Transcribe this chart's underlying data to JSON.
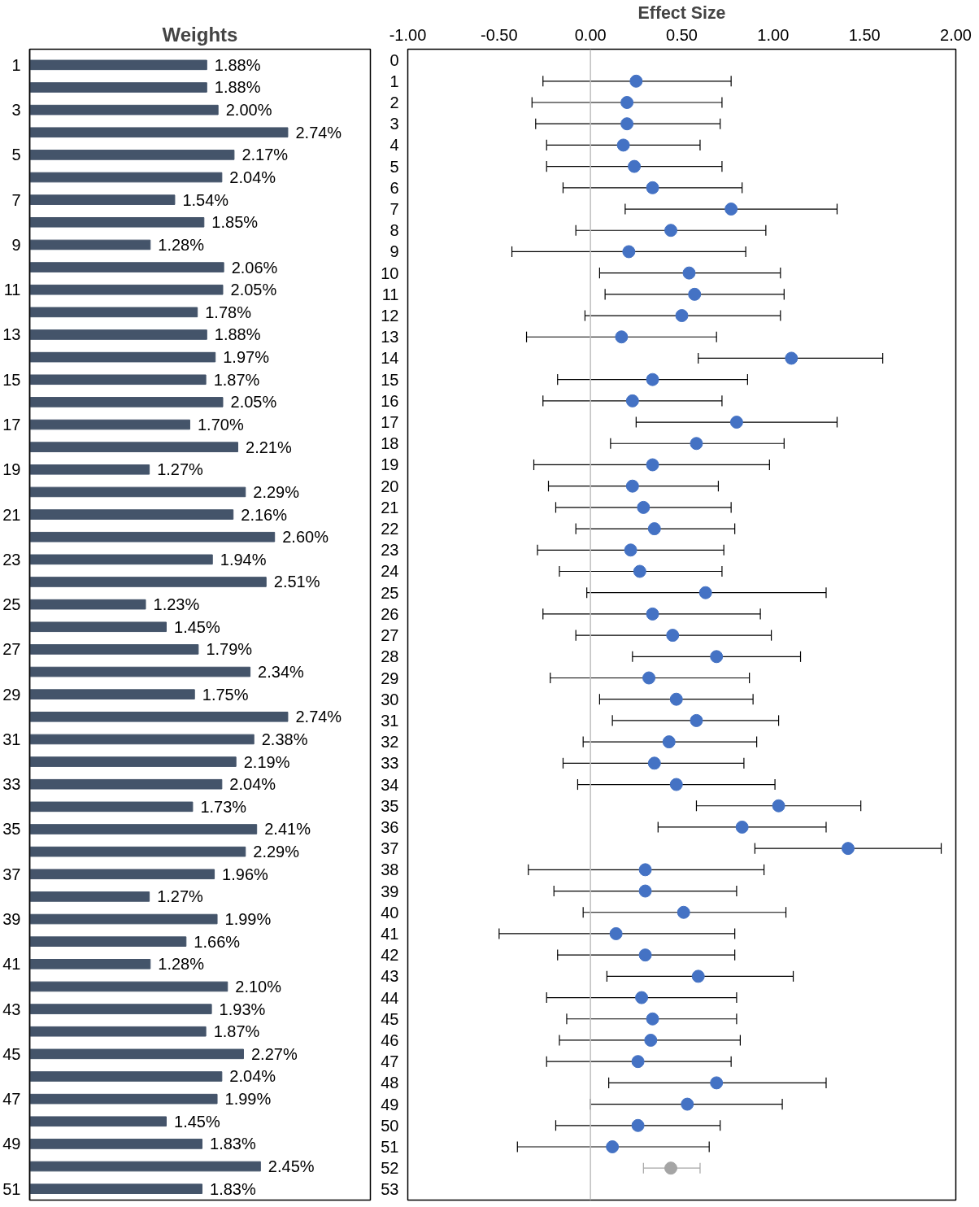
{
  "chart_data": [
    {
      "type": "bar",
      "orientation": "horizontal",
      "title": "Weights",
      "color": "#44546a",
      "categories": [
        "1",
        null,
        "3",
        null,
        "5",
        null,
        "7",
        null,
        "9",
        null,
        "11",
        null,
        "13",
        null,
        "15",
        null,
        "17",
        null,
        "19",
        null,
        "21",
        null,
        "23",
        null,
        "25",
        null,
        "27",
        null,
        "29",
        null,
        "31",
        null,
        "33",
        null,
        "35",
        null,
        "37",
        null,
        "39",
        null,
        "41",
        null,
        "43",
        null,
        "45",
        null,
        "47",
        null,
        "49",
        null,
        "51"
      ],
      "values": [
        1.88,
        1.88,
        2.0,
        2.74,
        2.17,
        2.04,
        1.54,
        1.85,
        1.28,
        2.06,
        2.05,
        1.78,
        1.88,
        1.97,
        1.87,
        2.05,
        1.7,
        2.21,
        1.27,
        2.29,
        2.16,
        2.6,
        1.94,
        2.51,
        1.23,
        1.45,
        1.79,
        2.34,
        1.75,
        2.74,
        2.38,
        2.19,
        2.04,
        1.73,
        2.41,
        2.29,
        1.96,
        1.27,
        1.99,
        1.66,
        1.28,
        2.1,
        1.93,
        1.87,
        2.27,
        2.04,
        1.99,
        1.45,
        1.83,
        2.45,
        1.83
      ],
      "value_labels": [
        "1.88%",
        "1.88%",
        "2.00%",
        "2.74%",
        "2.17%",
        "2.04%",
        "1.54%",
        "1.85%",
        "1.28%",
        "2.06%",
        "2.05%",
        "1.78%",
        "1.88%",
        "1.97%",
        "1.87%",
        "2.05%",
        "1.70%",
        "2.21%",
        "1.27%",
        "2.29%",
        "2.16%",
        "2.60%",
        "1.94%",
        "2.51%",
        "1.23%",
        "1.45%",
        "1.79%",
        "2.34%",
        "1.75%",
        "2.74%",
        "2.38%",
        "2.19%",
        "2.04%",
        "1.73%",
        "2.41%",
        "2.29%",
        "1.96%",
        "1.27%",
        "1.99%",
        "1.66%",
        "1.28%",
        "2.10%",
        "1.93%",
        "1.87%",
        "2.27%",
        "2.04%",
        "1.99%",
        "1.45%",
        "1.83%",
        "2.45%",
        "1.83%"
      ]
    },
    {
      "type": "scatter",
      "orientation": "horizontal",
      "xlabel": "Effect Size",
      "marker": "circle",
      "categories": [
        "0",
        "1",
        "2",
        "3",
        "4",
        "5",
        "6",
        "7",
        "8",
        "9",
        "10",
        "11",
        "12",
        "13",
        "14",
        "15",
        "16",
        "17",
        "18",
        "19",
        "20",
        "21",
        "22",
        "23",
        "24",
        "25",
        "26",
        "27",
        "28",
        "29",
        "30",
        "31",
        "32",
        "33",
        "34",
        "35",
        "36",
        "37",
        "38",
        "39",
        "40",
        "41",
        "42",
        "43",
        "44",
        "45",
        "46",
        "47",
        "48",
        "49",
        "50",
        "51",
        "52",
        "53"
      ],
      "xlim": [
        -1,
        2
      ],
      "xticks": [
        {
          "value": -1,
          "label": "-1.00"
        },
        {
          "value": -0.5,
          "label": "-0.50"
        },
        {
          "value": 0,
          "label": "0.00"
        },
        {
          "value": 0.5,
          "label": "0.50"
        },
        {
          "value": 1,
          "label": "1.00"
        },
        {
          "value": 1.5,
          "label": "1.50"
        },
        {
          "value": 2,
          "label": "2.00"
        }
      ],
      "ref_lines": [
        {
          "axis": "x",
          "value": 0,
          "color": "#bfbfbf"
        }
      ],
      "series": [
        {
          "color": "#4472c4",
          "values": [
            null,
            0.25,
            0.2,
            0.2,
            0.18,
            0.24,
            0.34,
            0.77,
            0.44,
            0.21,
            0.54,
            0.57,
            0.5,
            0.17,
            1.1,
            0.34,
            0.23,
            0.8,
            0.58,
            0.34,
            0.23,
            0.29,
            0.35,
            0.22,
            0.27,
            0.63,
            0.34,
            0.45,
            0.69,
            0.32,
            0.47,
            0.58,
            0.43,
            0.35,
            0.47,
            1.03,
            0.83,
            1.41,
            0.3,
            0.3,
            0.51,
            0.14,
            0.3,
            0.59,
            0.28,
            0.34,
            0.33,
            0.26,
            0.69,
            0.53,
            0.26,
            0.12,
            null,
            null
          ],
          "errors": [
            null,
            [
              -0.26,
              0.77
            ],
            [
              -0.32,
              0.72
            ],
            [
              -0.3,
              0.71
            ],
            [
              -0.24,
              0.6
            ],
            [
              -0.24,
              0.72
            ],
            [
              -0.15,
              0.83
            ],
            [
              0.19,
              1.35
            ],
            [
              -0.08,
              0.96
            ],
            [
              -0.43,
              0.85
            ],
            [
              0.05,
              1.04
            ],
            [
              0.08,
              1.06
            ],
            [
              -0.03,
              1.04
            ],
            [
              -0.35,
              0.69
            ],
            [
              0.59,
              1.6
            ],
            [
              -0.18,
              0.86
            ],
            [
              -0.26,
              0.72
            ],
            [
              0.25,
              1.35
            ],
            [
              0.11,
              1.06
            ],
            [
              -0.31,
              0.98
            ],
            [
              -0.23,
              0.7
            ],
            [
              -0.19,
              0.77
            ],
            [
              -0.08,
              0.79
            ],
            [
              -0.29,
              0.73
            ],
            [
              -0.17,
              0.72
            ],
            [
              -0.02,
              1.29
            ],
            [
              -0.26,
              0.93
            ],
            [
              -0.08,
              0.99
            ],
            [
              0.23,
              1.15
            ],
            [
              -0.22,
              0.87
            ],
            [
              0.05,
              0.89
            ],
            [
              0.12,
              1.03
            ],
            [
              -0.04,
              0.91
            ],
            [
              -0.15,
              0.84
            ],
            [
              -0.07,
              1.01
            ],
            [
              0.58,
              1.48
            ],
            [
              0.37,
              1.29
            ],
            [
              0.9,
              1.92
            ],
            [
              -0.34,
              0.95
            ],
            [
              -0.2,
              0.8
            ],
            [
              -0.04,
              1.07
            ],
            [
              -0.5,
              0.79
            ],
            [
              -0.18,
              0.79
            ],
            [
              0.09,
              1.11
            ],
            [
              -0.24,
              0.8
            ],
            [
              -0.13,
              0.8
            ],
            [
              -0.17,
              0.82
            ],
            [
              -0.24,
              0.77
            ],
            [
              0.1,
              1.29
            ],
            [
              0.0,
              1.05
            ],
            [
              -0.19,
              0.71
            ],
            [
              -0.4,
              0.65
            ],
            null,
            null
          ]
        },
        {
          "color": "#a5a5a5",
          "values": [
            null,
            null,
            null,
            null,
            null,
            null,
            null,
            null,
            null,
            null,
            null,
            null,
            null,
            null,
            null,
            null,
            null,
            null,
            null,
            null,
            null,
            null,
            null,
            null,
            null,
            null,
            null,
            null,
            null,
            null,
            null,
            null,
            null,
            null,
            null,
            null,
            null,
            null,
            null,
            null,
            null,
            null,
            null,
            null,
            null,
            null,
            null,
            null,
            null,
            null,
            null,
            null,
            0.44,
            null
          ],
          "errors": [
            null,
            null,
            null,
            null,
            null,
            null,
            null,
            null,
            null,
            null,
            null,
            null,
            null,
            null,
            null,
            null,
            null,
            null,
            null,
            null,
            null,
            null,
            null,
            null,
            null,
            null,
            null,
            null,
            null,
            null,
            null,
            null,
            null,
            null,
            null,
            null,
            null,
            null,
            null,
            null,
            null,
            null,
            null,
            null,
            null,
            null,
            null,
            null,
            null,
            null,
            null,
            null,
            [
              0.29,
              0.6
            ],
            null
          ]
        }
      ]
    }
  ]
}
